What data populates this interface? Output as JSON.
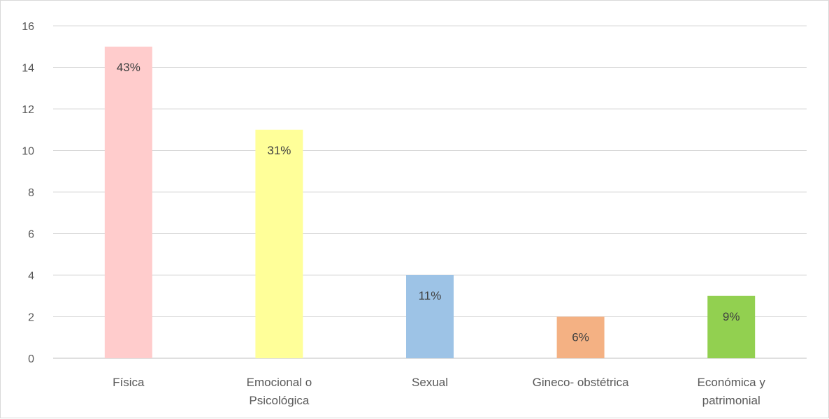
{
  "chart_data": {
    "type": "bar",
    "title": "",
    "xlabel": "",
    "ylabel": "",
    "categories": [
      [
        "Física"
      ],
      [
        "Emocional o",
        "Psicológica"
      ],
      [
        "Sexual"
      ],
      [
        "Gineco- obstétrica"
      ],
      [
        "Económica y",
        "patrimonial"
      ]
    ],
    "values": [
      15,
      11,
      4,
      2,
      3
    ],
    "data_labels": [
      "43%",
      "31%",
      "11%",
      "6%",
      "9%"
    ],
    "colors": [
      "#ffcccc",
      "#ffff99",
      "#9dc3e6",
      "#f4b183",
      "#92d050"
    ],
    "ylim": [
      0,
      16
    ],
    "yticks": [
      0,
      2,
      4,
      6,
      8,
      10,
      12,
      14,
      16
    ],
    "grid": true,
    "legend": "none"
  }
}
